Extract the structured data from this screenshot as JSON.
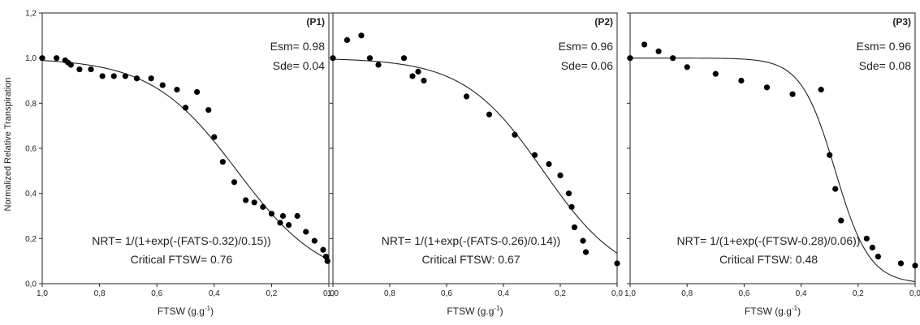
{
  "y_axis_label": "Normalized Relative Transpiration",
  "colors": {
    "points": "#000000",
    "curve": "#222222",
    "frame": "#222222"
  },
  "chart_data": [
    {
      "type": "scatter",
      "panel_label": "(P1)",
      "xlabel": "FTSW (g.g",
      "xlabel_sup": "-1",
      "xlabel_end": ")",
      "xlim": [
        1.0,
        0.0
      ],
      "ylim": [
        0.0,
        1.2
      ],
      "x_ticks": [
        "1,0",
        "0,8",
        "0,6",
        "0,4",
        "0,2",
        "0,0"
      ],
      "y_ticks": [
        "0,0",
        "0,2",
        "0,4",
        "0,6",
        "0,8",
        "1,0",
        "1,2"
      ],
      "stats": [
        "Esm= 0.98",
        "Sde= 0.04"
      ],
      "equation": "NRT= 1/(1+exp(-(FATS-0.32)/0.15))",
      "critical": "Critical FTSW= 0.76",
      "fit": {
        "model": "logistic",
        "x0": 0.32,
        "b": 0.15
      },
      "points": [
        [
          1.0,
          1.0
        ],
        [
          0.95,
          1.0
        ],
        [
          0.92,
          0.99
        ],
        [
          0.91,
          0.98
        ],
        [
          0.9,
          0.97
        ],
        [
          0.87,
          0.95
        ],
        [
          0.83,
          0.95
        ],
        [
          0.79,
          0.92
        ],
        [
          0.75,
          0.92
        ],
        [
          0.71,
          0.92
        ],
        [
          0.67,
          0.91
        ],
        [
          0.62,
          0.91
        ],
        [
          0.58,
          0.88
        ],
        [
          0.53,
          0.86
        ],
        [
          0.5,
          0.78
        ],
        [
          0.46,
          0.85
        ],
        [
          0.42,
          0.77
        ],
        [
          0.4,
          0.65
        ],
        [
          0.37,
          0.54
        ],
        [
          0.33,
          0.45
        ],
        [
          0.29,
          0.37
        ],
        [
          0.26,
          0.36
        ],
        [
          0.23,
          0.34
        ],
        [
          0.2,
          0.31
        ],
        [
          0.17,
          0.27
        ],
        [
          0.16,
          0.3
        ],
        [
          0.14,
          0.26
        ],
        [
          0.11,
          0.3
        ],
        [
          0.08,
          0.23
        ],
        [
          0.05,
          0.19
        ],
        [
          0.02,
          0.15
        ],
        [
          0.01,
          0.12
        ],
        [
          0.005,
          0.1
        ]
      ]
    },
    {
      "type": "scatter",
      "panel_label": "(P2)",
      "xlabel": "FTSW (g.g",
      "xlabel_sup": "-1",
      "xlabel_end": ")",
      "xlim": [
        1.0,
        0.0
      ],
      "ylim": [
        0.0,
        1.2
      ],
      "x_ticks": [
        "1,0",
        "0,8",
        "0,6",
        "0,4",
        "0,2",
        "0,0"
      ],
      "y_ticks": [],
      "stats": [
        "Esm= 0.96",
        "Sde= 0.06"
      ],
      "equation": "NRT= 1/(1+exp(-(FATS-0.26)/0.14))",
      "critical": "Critical FTSW: 0.67",
      "fit": {
        "model": "logistic",
        "x0": 0.26,
        "b": 0.14
      },
      "points": [
        [
          1.0,
          1.0
        ],
        [
          0.95,
          1.08
        ],
        [
          0.9,
          1.1
        ],
        [
          0.87,
          1.0
        ],
        [
          0.84,
          0.97
        ],
        [
          0.75,
          1.0
        ],
        [
          0.72,
          0.92
        ],
        [
          0.7,
          0.94
        ],
        [
          0.68,
          0.9
        ],
        [
          0.53,
          0.83
        ],
        [
          0.45,
          0.75
        ],
        [
          0.36,
          0.66
        ],
        [
          0.29,
          0.57
        ],
        [
          0.24,
          0.53
        ],
        [
          0.2,
          0.48
        ],
        [
          0.17,
          0.4
        ],
        [
          0.16,
          0.34
        ],
        [
          0.15,
          0.25
        ],
        [
          0.12,
          0.19
        ],
        [
          0.11,
          0.14
        ],
        [
          0.0,
          0.09
        ]
      ]
    },
    {
      "type": "scatter",
      "panel_label": "(P3)",
      "xlabel": "FTSW (g.g",
      "xlabel_sup": "-1",
      "xlabel_end": ")",
      "xlim": [
        1.0,
        0.0
      ],
      "ylim": [
        0.0,
        1.2
      ],
      "x_ticks": [
        "1,0",
        "0,8",
        "0,6",
        "0,4",
        "0,2",
        "0,0"
      ],
      "y_ticks": [],
      "stats": [
        "Esm= 0.96",
        "Sde= 0.08"
      ],
      "equation": "NRT= 1/(1+exp(-(FTSW-0.28)/0.06))",
      "critical": "Critical FTSW: 0.48",
      "fit": {
        "model": "logistic",
        "x0": 0.28,
        "b": 0.06
      },
      "points": [
        [
          1.0,
          1.0
        ],
        [
          0.95,
          1.06
        ],
        [
          0.9,
          1.03
        ],
        [
          0.85,
          1.0
        ],
        [
          0.8,
          0.96
        ],
        [
          0.7,
          0.93
        ],
        [
          0.61,
          0.9
        ],
        [
          0.52,
          0.87
        ],
        [
          0.43,
          0.84
        ],
        [
          0.33,
          0.86
        ],
        [
          0.3,
          0.57
        ],
        [
          0.28,
          0.42
        ],
        [
          0.26,
          0.28
        ],
        [
          0.17,
          0.2
        ],
        [
          0.15,
          0.16
        ],
        [
          0.13,
          0.12
        ],
        [
          0.05,
          0.09
        ],
        [
          0.0,
          0.08
        ]
      ]
    }
  ]
}
